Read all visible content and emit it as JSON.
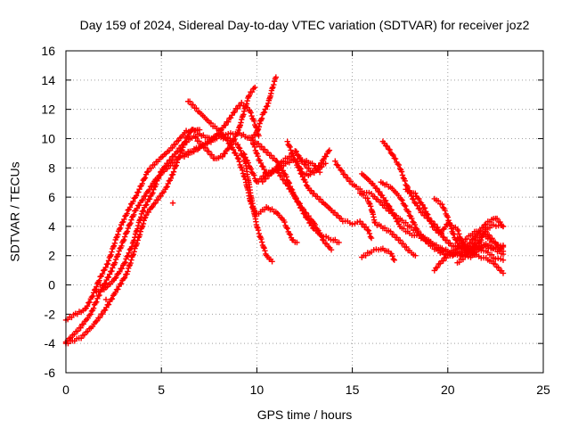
{
  "chart_data": {
    "type": "scatter",
    "title": "Day 159 of 2024, Sidereal Day-to-day VTEC variation (SDTVAR) for receiver joz2",
    "xlabel": "GPS time / hours",
    "ylabel": "SDTVAR / TECUs",
    "xlim": [
      0,
      25
    ],
    "ylim": [
      -6,
      16
    ],
    "xticks": [
      0,
      5,
      10,
      15,
      20,
      25
    ],
    "yticks": [
      -6,
      -4,
      -2,
      0,
      2,
      4,
      6,
      8,
      10,
      12,
      14,
      16
    ],
    "grid": true,
    "legend": "none",
    "marker": "+",
    "color": "#ff0000",
    "tracks": [
      [
        [
          0.0,
          -2.4
        ],
        [
          0.5,
          -2.0
        ],
        [
          1.0,
          -1.7
        ],
        [
          1.3,
          -1.0
        ],
        [
          1.8,
          0.5
        ],
        [
          2.2,
          1.5
        ],
        [
          2.8,
          3.8
        ],
        [
          3.3,
          5.2
        ],
        [
          3.8,
          6.4
        ],
        [
          4.3,
          7.8
        ],
        [
          4.9,
          8.6
        ],
        [
          5.5,
          9.3
        ],
        [
          6.3,
          10.5
        ],
        [
          6.9,
          10.6
        ]
      ],
      [
        [
          0.0,
          -3.9
        ],
        [
          0.7,
          -3.0
        ],
        [
          1.3,
          -2.0
        ],
        [
          1.8,
          -0.5
        ],
        [
          2.4,
          1.0
        ],
        [
          3.0,
          3.0
        ],
        [
          3.6,
          5.0
        ],
        [
          4.1,
          6.0
        ],
        [
          4.7,
          7.2
        ],
        [
          5.3,
          8.0
        ],
        [
          6.0,
          8.8
        ],
        [
          6.6,
          9.2
        ],
        [
          7.3,
          9.6
        ],
        [
          8.0,
          10.1
        ],
        [
          8.6,
          10.0
        ],
        [
          9.0,
          9.6
        ],
        [
          9.4,
          8.4
        ],
        [
          9.7,
          6.0
        ],
        [
          10.0,
          4.0
        ],
        [
          10.5,
          2.0
        ],
        [
          10.8,
          1.6
        ]
      ],
      [
        [
          0.0,
          -4.0
        ],
        [
          0.8,
          -3.6
        ],
        [
          1.4,
          -2.8
        ],
        [
          2.0,
          -1.8
        ],
        [
          2.6,
          -0.5
        ],
        [
          3.2,
          0.8
        ],
        [
          3.8,
          3.2
        ],
        [
          4.2,
          4.8
        ],
        [
          4.6,
          5.5
        ],
        [
          5.2,
          6.5
        ],
        [
          5.6,
          7.6
        ],
        [
          6.0,
          9.0
        ],
        [
          6.3,
          10.0
        ],
        [
          6.6,
          10.6
        ],
        [
          7.0,
          10.6
        ]
      ],
      [
        [
          1.6,
          -0.5
        ],
        [
          2.0,
          -0.3
        ],
        [
          2.5,
          0.3
        ],
        [
          3.0,
          1.3
        ],
        [
          3.5,
          2.8
        ],
        [
          4.0,
          5.0
        ],
        [
          4.5,
          6.2
        ],
        [
          5.0,
          7.8
        ],
        [
          5.5,
          8.6
        ],
        [
          6.0,
          9.4
        ],
        [
          6.5,
          10.0
        ],
        [
          7.0,
          10.3
        ],
        [
          7.5,
          10.0
        ],
        [
          8.0,
          10.2
        ],
        [
          8.5,
          10.3
        ],
        [
          9.0,
          10.4
        ],
        [
          9.5,
          10.1
        ],
        [
          10.0,
          9.7
        ],
        [
          10.5,
          9.1
        ],
        [
          11.0,
          8.5
        ],
        [
          11.5,
          7.5
        ],
        [
          12.0,
          6.0
        ],
        [
          12.5,
          4.8
        ],
        [
          13.0,
          3.8
        ],
        [
          13.5,
          3.3
        ],
        [
          14.0,
          3.1
        ],
        [
          14.3,
          2.9
        ]
      ],
      [
        [
          6.4,
          12.6
        ],
        [
          7.0,
          11.8
        ],
        [
          7.6,
          11.0
        ],
        [
          8.1,
          10.5
        ],
        [
          8.6,
          9.6
        ],
        [
          9.0,
          8.7
        ],
        [
          9.4,
          7.2
        ],
        [
          9.7,
          5.5
        ],
        [
          10.0,
          4.8
        ],
        [
          10.5,
          5.3
        ],
        [
          11.0,
          5.0
        ],
        [
          11.4,
          4.4
        ],
        [
          11.7,
          3.5
        ],
        [
          11.9,
          3.0
        ],
        [
          12.1,
          2.9
        ]
      ],
      [
        [
          6.2,
          8.8
        ],
        [
          6.8,
          9.2
        ],
        [
          7.4,
          9.7
        ],
        [
          8.0,
          10.4
        ],
        [
          8.5,
          11.2
        ],
        [
          8.9,
          12.0
        ],
        [
          9.2,
          12.4
        ],
        [
          9.6,
          12.0
        ],
        [
          9.9,
          11.0
        ],
        [
          10.1,
          10.2
        ]
      ],
      [
        [
          6.8,
          10.0
        ],
        [
          7.4,
          9.2
        ],
        [
          7.8,
          8.6
        ],
        [
          8.2,
          8.8
        ],
        [
          8.6,
          9.5
        ],
        [
          9.0,
          10.4
        ],
        [
          9.3,
          11.7
        ],
        [
          9.6,
          13.0
        ],
        [
          9.9,
          13.5
        ]
      ],
      [
        [
          9.7,
          10.0
        ],
        [
          10.0,
          10.4
        ],
        [
          10.3,
          11.6
        ],
        [
          10.6,
          12.4
        ],
        [
          10.8,
          13.4
        ],
        [
          11.0,
          14.2
        ]
      ],
      [
        [
          9.8,
          9.7
        ],
        [
          10.1,
          8.6
        ],
        [
          10.5,
          7.6
        ],
        [
          11.0,
          7.8
        ],
        [
          11.5,
          8.3
        ],
        [
          12.0,
          8.6
        ],
        [
          12.5,
          8.5
        ],
        [
          13.0,
          8.2
        ],
        [
          13.3,
          7.7
        ]
      ],
      [
        [
          9.3,
          9.0
        ],
        [
          9.7,
          7.9
        ],
        [
          10.0,
          7.0
        ],
        [
          10.5,
          7.6
        ],
        [
          11.0,
          7.9
        ],
        [
          11.5,
          7.0
        ],
        [
          12.0,
          6.0
        ],
        [
          12.5,
          5.0
        ],
        [
          13.0,
          4.2
        ],
        [
          13.5,
          3.0
        ],
        [
          13.9,
          2.4
        ]
      ],
      [
        [
          10.3,
          7.1
        ],
        [
          10.8,
          7.7
        ],
        [
          11.3,
          8.4
        ],
        [
          11.7,
          8.8
        ],
        [
          12.1,
          8.4
        ],
        [
          12.4,
          7.6
        ],
        [
          12.7,
          7.5
        ],
        [
          13.1,
          7.8
        ],
        [
          13.5,
          8.6
        ],
        [
          13.8,
          9.2
        ]
      ],
      [
        [
          11.6,
          9.8
        ],
        [
          12.0,
          8.5
        ],
        [
          12.4,
          7.4
        ],
        [
          12.7,
          6.6
        ],
        [
          13.0,
          6.2
        ],
        [
          13.5,
          5.6
        ],
        [
          14.0,
          5.0
        ],
        [
          14.5,
          4.4
        ],
        [
          15.0,
          4.2
        ],
        [
          15.4,
          4.3
        ],
        [
          15.8,
          3.8
        ],
        [
          16.0,
          3.2
        ]
      ],
      [
        [
          12.0,
          9.2
        ],
        [
          12.4,
          8.4
        ],
        [
          12.8,
          7.8
        ],
        [
          13.3,
          8.0
        ],
        [
          13.6,
          8.3
        ]
      ],
      [
        [
          14.1,
          8.4
        ],
        [
          14.6,
          7.5
        ],
        [
          15.0,
          6.9
        ],
        [
          15.5,
          6.4
        ],
        [
          16.0,
          6.2
        ],
        [
          16.5,
          5.6
        ],
        [
          17.0,
          5.0
        ],
        [
          17.5,
          4.5
        ],
        [
          18.0,
          4.0
        ],
        [
          18.5,
          3.5
        ],
        [
          19.0,
          3.0
        ],
        [
          19.5,
          2.6
        ],
        [
          20.0,
          2.3
        ],
        [
          20.5,
          2.0
        ],
        [
          21.0,
          2.2
        ],
        [
          21.5,
          2.5
        ],
        [
          22.0,
          2.3
        ],
        [
          22.5,
          1.8
        ],
        [
          22.9,
          1.7
        ]
      ],
      [
        [
          15.5,
          7.6
        ],
        [
          16.0,
          7.0
        ],
        [
          16.5,
          6.2
        ],
        [
          17.0,
          5.2
        ],
        [
          17.5,
          4.0
        ],
        [
          18.0,
          3.5
        ],
        [
          18.5,
          3.3
        ],
        [
          19.0,
          3.0
        ],
        [
          19.5,
          2.5
        ],
        [
          20.0,
          2.1
        ],
        [
          20.5,
          2.5
        ],
        [
          21.0,
          3.2
        ],
        [
          21.5,
          3.7
        ],
        [
          22.0,
          3.3
        ],
        [
          22.5,
          2.8
        ],
        [
          22.9,
          2.7
        ]
      ],
      [
        [
          15.4,
          6.3
        ],
        [
          15.8,
          5.9
        ],
        [
          16.0,
          5.2
        ],
        [
          16.2,
          4.2
        ],
        [
          16.5,
          4.0
        ],
        [
          17.0,
          3.6
        ],
        [
          17.5,
          3.0
        ],
        [
          18.0,
          2.3
        ],
        [
          18.3,
          2.0
        ]
      ],
      [
        [
          15.5,
          1.9
        ],
        [
          16.0,
          2.3
        ],
        [
          16.5,
          2.5
        ],
        [
          17.0,
          2.2
        ],
        [
          17.2,
          1.7
        ]
      ],
      [
        [
          16.6,
          9.8
        ],
        [
          16.9,
          9.3
        ],
        [
          17.2,
          8.7
        ],
        [
          17.5,
          8.0
        ],
        [
          17.8,
          6.9
        ],
        [
          18.2,
          5.8
        ],
        [
          18.6,
          5.0
        ],
        [
          19.0,
          4.5
        ],
        [
          19.4,
          4.0
        ],
        [
          19.8,
          3.2
        ],
        [
          20.2,
          2.7
        ],
        [
          20.6,
          2.5
        ],
        [
          21.0,
          2.5
        ]
      ],
      [
        [
          16.5,
          7.0
        ],
        [
          17.0,
          6.7
        ],
        [
          17.5,
          6.0
        ],
        [
          18.0,
          4.8
        ],
        [
          18.5,
          3.5
        ],
        [
          19.0,
          2.8
        ],
        [
          19.5,
          2.3
        ],
        [
          20.0,
          2.0
        ],
        [
          20.5,
          2.1
        ],
        [
          21.0,
          2.6
        ],
        [
          21.5,
          3.4
        ],
        [
          22.0,
          4.2
        ],
        [
          22.5,
          4.6
        ],
        [
          22.9,
          4.0
        ]
      ],
      [
        [
          17.8,
          6.5
        ],
        [
          18.3,
          6.2
        ],
        [
          18.8,
          5.2
        ],
        [
          19.2,
          4.0
        ],
        [
          19.6,
          3.5
        ],
        [
          20.0,
          4.2
        ],
        [
          20.5,
          3.8
        ],
        [
          20.8,
          2.7
        ],
        [
          21.2,
          2.2
        ],
        [
          21.6,
          2.7
        ],
        [
          22.0,
          3.8
        ],
        [
          22.4,
          4.1
        ],
        [
          22.9,
          4.0
        ]
      ],
      [
        [
          19.3,
          5.9
        ],
        [
          19.7,
          5.5
        ],
        [
          20.0,
          4.6
        ],
        [
          20.3,
          3.4
        ],
        [
          20.6,
          2.6
        ],
        [
          21.0,
          2.4
        ],
        [
          21.5,
          2.7
        ],
        [
          22.0,
          2.6
        ],
        [
          22.5,
          2.4
        ],
        [
          22.9,
          2.1
        ]
      ],
      [
        [
          19.3,
          1.0
        ],
        [
          19.6,
          1.5
        ],
        [
          20.0,
          2.0
        ],
        [
          20.4,
          2.3
        ],
        [
          20.8,
          2.0
        ],
        [
          21.2,
          1.9
        ],
        [
          21.6,
          2.4
        ],
        [
          22.0,
          2.8
        ],
        [
          22.4,
          2.5
        ],
        [
          22.9,
          2.6
        ]
      ],
      [
        [
          20.5,
          3.2
        ],
        [
          21.0,
          2.6
        ],
        [
          21.5,
          2.0
        ],
        [
          22.0,
          1.8
        ],
        [
          22.4,
          1.5
        ],
        [
          22.9,
          0.8
        ]
      ],
      [
        [
          20.5,
          1.5
        ],
        [
          21.0,
          2.0
        ],
        [
          21.5,
          3.0
        ],
        [
          22.0,
          3.6
        ],
        [
          22.4,
          3.0
        ],
        [
          22.9,
          2.3
        ]
      ]
    ],
    "outliers": [
      [
        5.6,
        5.6
      ],
      [
        2.1,
        -1.0
      ],
      [
        1.8,
        0.0
      ]
    ]
  }
}
